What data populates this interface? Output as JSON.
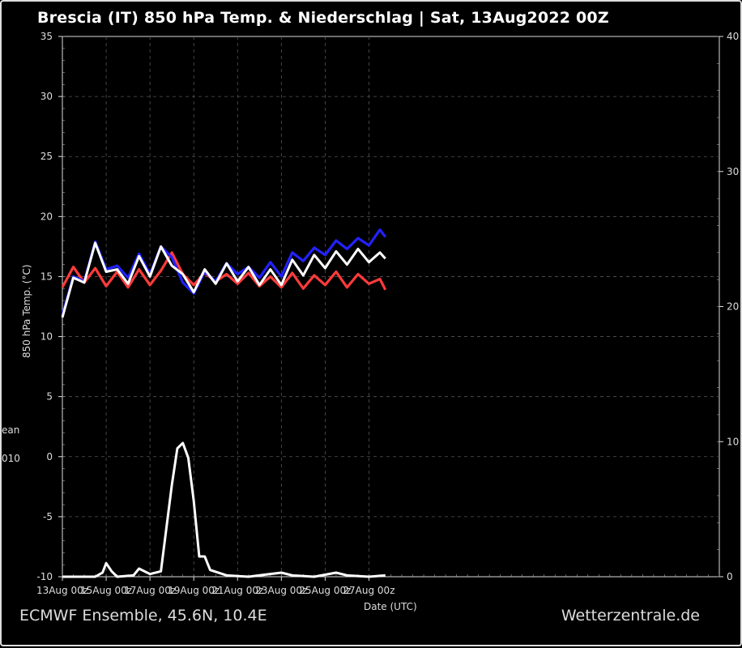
{
  "chart_data": {
    "type": "line",
    "title": "Brescia  (IT)  850 hPa Temp. & Niederschlag | Sat, 13Aug2022 00Z",
    "ylabel": "850 hPa Temp. (°C)",
    "xlabel": "Date (UTC)",
    "ylim": [
      -10,
      35
    ],
    "y2lim": [
      0,
      40
    ],
    "xlim": [
      0,
      720
    ],
    "grid": true,
    "y_ticks": [
      -10,
      -5,
      0,
      5,
      10,
      15,
      20,
      25,
      30,
      35
    ],
    "y2_ticks": [
      0,
      10,
      20,
      30,
      40
    ],
    "x_ticks": [
      {
        "x": 0,
        "label": "13Aug 00z"
      },
      {
        "x": 48,
        "label": "15Aug 00z"
      },
      {
        "x": 96,
        "label": "17Aug 00z"
      },
      {
        "x": 144,
        "label": "19Aug 00z"
      },
      {
        "x": 192,
        "label": "21Aug 00z"
      },
      {
        "x": 240,
        "label": "23Aug 00z"
      },
      {
        "x": 288,
        "label": "25Aug 00z"
      },
      {
        "x": 336,
        "label": "27Aug 00z"
      }
    ],
    "series": [
      {
        "role": "operational-temp",
        "color": "#ff3b3b",
        "x": [
          0,
          12,
          24,
          36,
          48,
          60,
          72,
          84,
          96,
          108,
          120,
          132,
          144,
          156,
          168,
          180,
          192,
          204,
          216,
          228,
          240,
          252,
          264,
          276,
          288,
          300,
          312,
          324,
          336,
          348,
          354
        ],
        "y": [
          14.1,
          15.8,
          14.5,
          15.7,
          14.2,
          15.4,
          14.1,
          15.6,
          14.3,
          15.5,
          17.0,
          15.2,
          14.3,
          15.3,
          14.6,
          15.2,
          14.4,
          15.3,
          14.2,
          15.0,
          14.1,
          15.3,
          14.0,
          15.1,
          14.3,
          15.4,
          14.1,
          15.2,
          14.4,
          14.8,
          13.9
        ]
      },
      {
        "role": "control-temp",
        "color": "#2222ff",
        "x": [
          0,
          12,
          24,
          36,
          48,
          60,
          72,
          84,
          96,
          108,
          120,
          132,
          144,
          156,
          168,
          180,
          192,
          204,
          216,
          228,
          240,
          252,
          264,
          276,
          288,
          300,
          312,
          324,
          336,
          348,
          354
        ],
        "y": [
          11.8,
          15.0,
          14.6,
          17.9,
          15.6,
          15.9,
          14.9,
          16.9,
          15.2,
          17.5,
          16.6,
          14.5,
          13.6,
          15.4,
          14.6,
          16.1,
          15.2,
          15.8,
          14.9,
          16.2,
          15.0,
          17.0,
          16.3,
          17.4,
          16.8,
          18.0,
          17.3,
          18.2,
          17.6,
          18.9,
          18.3
        ]
      },
      {
        "role": "ensemble-mean-temp",
        "color": "#ffffff",
        "x": [
          0,
          12,
          24,
          36,
          48,
          60,
          72,
          84,
          96,
          108,
          120,
          132,
          144,
          156,
          168,
          180,
          192,
          204,
          216,
          228,
          240,
          252,
          264,
          276,
          288,
          300,
          312,
          324,
          336,
          348,
          354
        ],
        "y": [
          11.6,
          14.9,
          14.5,
          17.8,
          15.4,
          15.6,
          14.4,
          16.7,
          15.0,
          17.5,
          15.9,
          15.2,
          13.7,
          15.6,
          14.4,
          16.1,
          14.6,
          15.8,
          14.3,
          15.6,
          14.3,
          16.4,
          15.1,
          16.8,
          15.7,
          17.1,
          16.0,
          17.3,
          16.2,
          17.0,
          16.5
        ]
      },
      {
        "role": "ensemble-mean-precip",
        "color": "#ffffff",
        "x": [
          0,
          36,
          44,
          48,
          54,
          60,
          78,
          84,
          96,
          108,
          120,
          126,
          132,
          138,
          144,
          150,
          156,
          162,
          180,
          204,
          228,
          240,
          252,
          276,
          300,
          312,
          336,
          354
        ],
        "y": [
          0,
          0,
          0.3,
          1.0,
          0.4,
          0,
          0.1,
          0.6,
          0.2,
          0.4,
          6.8,
          9.5,
          9.9,
          8.8,
          5.6,
          1.5,
          1.5,
          0.5,
          0.1,
          0,
          0.2,
          0.3,
          0.1,
          0,
          0.3,
          0.1,
          0,
          0.1
        ]
      }
    ]
  },
  "footer": {
    "left": "ECMWF Ensemble, 45.6N, 10.4E",
    "right": "Wetterzentrale.de"
  },
  "legend_fragments": [
    "ean",
    "010"
  ]
}
